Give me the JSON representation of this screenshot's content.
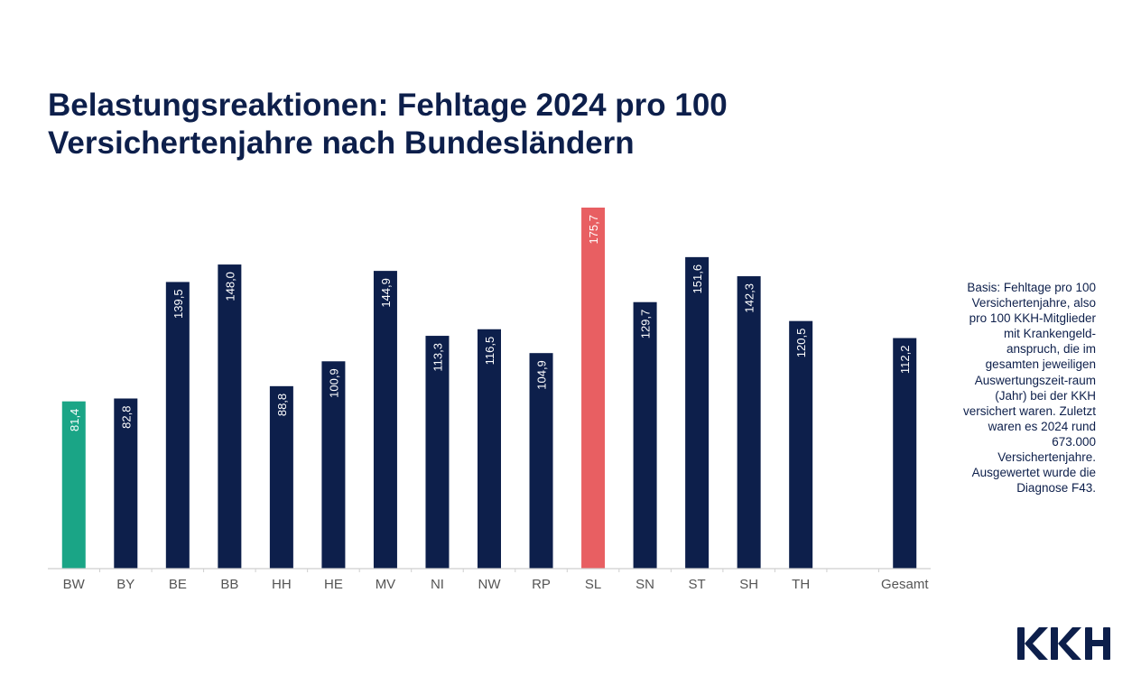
{
  "title": {
    "line1": "Belastungsreaktionen: Fehltage 2024 pro 100",
    "line2": "Versichertenjahre nach Bundesländern"
  },
  "note": "Basis: Fehltage pro 100 Versichertenjahre, also pro 100 KKH-Mitglieder mit Krankengeld-anspruch, die im gesamten jeweiligen Auswertungszeit-raum (Jahr) bei der KKH versichert waren. Zuletzt waren es 2024 rund 673.000 Versichertenjahre. Ausgewertet wurde die Diagnose F43.",
  "logo": {
    "text": "KKH",
    "color": "#0d1f4b"
  },
  "colors": {
    "default": "#0d1f4b",
    "lowest": "#1aa586",
    "highest": "#e85f62",
    "axis": "#cfcfcf",
    "tick_label": "#555555"
  },
  "chart_data": {
    "type": "bar",
    "title": "Belastungsreaktionen: Fehltage 2024 pro 100 Versichertenjahre nach Bundesländern",
    "xlabel": "",
    "ylabel": "",
    "ylim": [
      0,
      180
    ],
    "grid": false,
    "categories": [
      "BW",
      "BY",
      "BE",
      "BB",
      "HH",
      "HE",
      "MV",
      "NI",
      "NW",
      "RP",
      "SL",
      "SN",
      "ST",
      "SH",
      "TH",
      "",
      "Gesamt"
    ],
    "values": [
      81.4,
      82.8,
      139.5,
      148.0,
      88.8,
      100.9,
      144.9,
      113.3,
      116.5,
      104.9,
      175.7,
      129.7,
      151.6,
      142.3,
      120.5,
      null,
      112.2
    ],
    "labels": [
      "81,4",
      "82,8",
      "139,5",
      "148,0",
      "88,8",
      "100,9",
      "144,9",
      "113,3",
      "116,5",
      "104,9",
      "175,7",
      "129,7",
      "151,6",
      "142,3",
      "120,5",
      "",
      "112,2"
    ],
    "highlight": {
      "BW": "lowest",
      "SL": "highest"
    }
  }
}
